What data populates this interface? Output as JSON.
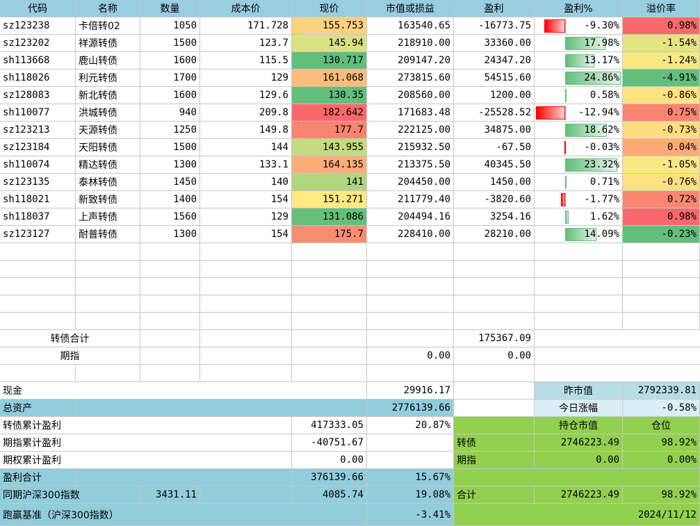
{
  "headers": [
    "代码",
    "名称",
    "数量",
    "成本价",
    "现价",
    "市值或损益",
    "盈利",
    "盈利%",
    "溢价率"
  ],
  "rows": [
    {
      "code": "sz123238",
      "name": "卡倍转02",
      "qty": "1050",
      "cost": "171.728",
      "price": "155.753",
      "mv": "163540.65",
      "pl": "-16773.75",
      "pct": "-9.30%",
      "pct_v": -9.3,
      "prem": "0.98%",
      "price_color": "#fcd27f",
      "prem_color": "#f8696b"
    },
    {
      "code": "sz123202",
      "name": "祥源转债",
      "qty": "1500",
      "cost": "123.7",
      "price": "145.94",
      "mv": "218910.00",
      "pl": "33360.00",
      "pct": "17.98%",
      "pct_v": 17.98,
      "prem": "-1.54%",
      "price_color": "#d8e283",
      "prem_color": "#e5e483"
    },
    {
      "code": "sh113668",
      "name": "鹿山转债",
      "qty": "1600",
      "cost": "115.5",
      "price": "130.717",
      "mv": "209147.20",
      "pl": "24347.20",
      "pct": "13.17%",
      "pct_v": 13.17,
      "prem": "-1.24%",
      "price_color": "#63be7b",
      "prem_color": "#f5e984"
    },
    {
      "code": "sh118026",
      "name": "利元转债",
      "qty": "1700",
      "cost": "129",
      "price": "161.068",
      "mv": "273815.60",
      "pl": "54515.60",
      "pct": "24.86%",
      "pct_v": 24.86,
      "prem": "-4.91%",
      "price_color": "#fdbc7b",
      "prem_color": "#63be7b"
    },
    {
      "code": "sz128083",
      "name": "新北转债",
      "qty": "1600",
      "cost": "129.6",
      "price": "130.35",
      "mv": "208560.00",
      "pl": "1200.00",
      "pct": "0.58%",
      "pct_v": 0.58,
      "prem": "-0.86%",
      "price_color": "#63be7b",
      "prem_color": "#fee382"
    },
    {
      "code": "sh110077",
      "name": "洪城转债",
      "qty": "940",
      "cost": "209.8",
      "price": "182.642",
      "mv": "171683.48",
      "pl": "-25528.52",
      "pct": "-12.94%",
      "pct_v": -12.94,
      "prem": "0.75%",
      "price_color": "#f8696b",
      "prem_color": "#f98470"
    },
    {
      "code": "sz123213",
      "name": "天源转债",
      "qty": "1250",
      "cost": "149.8",
      "price": "177.7",
      "mv": "222125.00",
      "pl": "34875.00",
      "pct": "18.62%",
      "pct_v": 18.62,
      "prem": "-0.73%",
      "price_color": "#f98470",
      "prem_color": "#fedd81"
    },
    {
      "code": "sz123184",
      "name": "天阳转债",
      "qty": "1500",
      "cost": "144",
      "price": "143.955",
      "mv": "215932.50",
      "pl": "-67.50",
      "pct": "-0.03%",
      "pct_v": -0.03,
      "prem": "0.04%",
      "price_color": "#c5db81",
      "prem_color": "#fbaa77"
    },
    {
      "code": "sh110074",
      "name": "精达转债",
      "qty": "1300",
      "cost": "133.1",
      "price": "164.135",
      "mv": "213375.50",
      "pl": "40345.50",
      "pct": "23.32%",
      "pct_v": 23.32,
      "prem": "-1.05%",
      "price_color": "#fcad78",
      "prem_color": "#fae884"
    },
    {
      "code": "sz123135",
      "name": "泰林转债",
      "qty": "1450",
      "cost": "140",
      "price": "141",
      "mv": "204450.00",
      "pl": "1450.00",
      "pct": "0.71%",
      "pct_v": 0.71,
      "prem": "-0.76%",
      "price_color": "#b2d580",
      "prem_color": "#fee082"
    },
    {
      "code": "sh118021",
      "name": "新致转债",
      "qty": "1400",
      "cost": "154",
      "price": "151.271",
      "mv": "211779.40",
      "pl": "-3820.60",
      "pct": "-1.77%",
      "pct_v": -1.77,
      "prem": "0.72%",
      "price_color": "#fee983",
      "prem_color": "#f98771"
    },
    {
      "code": "sh118037",
      "name": "上声转债",
      "qty": "1560",
      "cost": "129",
      "price": "131.086",
      "mv": "204494.16",
      "pl": "3254.16",
      "pct": "1.62%",
      "pct_v": 1.62,
      "prem": "0.98%",
      "price_color": "#65bf7b",
      "prem_color": "#f8696b"
    },
    {
      "code": "sz123127",
      "name": "耐普转债",
      "qty": "1300",
      "cost": "154",
      "price": "175.7",
      "mv": "228410.00",
      "pl": "28210.00",
      "pct": "14.09%",
      "pct_v": 14.09,
      "prem": "-0.23%",
      "price_color": "#f98d72",
      "prem_color": "#63be7b"
    }
  ],
  "summary": {
    "cb_total_label": "转债合计",
    "cb_total_value": "175367.09",
    "futures_label": "期指",
    "futures_mv": "0.00",
    "futures_pl": "0.00",
    "cash_label": "现金",
    "cash_value": "29916.17",
    "total_assets_label": "总资产",
    "total_assets_value": "2776139.66",
    "yesterday_mv_label": "昨市值",
    "yesterday_mv_value": "2792339.81",
    "today_change_label": "今日涨幅",
    "today_change_value": "-0.58%",
    "cb_cum_label": "转债累计盈利",
    "cb_cum_value": "417333.05",
    "cb_cum_pct": "20.87%",
    "fut_cum_label": "期指累计盈利",
    "fut_cum_value": "-40751.67",
    "opt_cum_label": "期权累计盈利",
    "opt_cum_value": "0.00",
    "pl_total_label": "盈利合计",
    "pl_total_value": "376139.66",
    "pl_total_pct": "15.67%",
    "hs300_label": "同期沪深300指数",
    "hs300_start": "3431.11",
    "hs300_now": "4085.74",
    "hs300_pct": "19.08%",
    "bench_label": "跑赢基准（沪深300指数）",
    "bench_value": "-3.41%",
    "hold_mv_label": "持仓市值",
    "position_label": "仓位",
    "cb_label": "转债",
    "cb_hold_mv": "2746223.49",
    "cb_position": "98.92%",
    "fut_label": "期指",
    "fut_hold_mv": "0.00",
    "fut_position": "0.00%",
    "sum_label": "合计",
    "sum_hold_mv": "2746223.49",
    "sum_position": "98.92%",
    "date": "2024/11/12"
  },
  "colors": {
    "header_blue": "#99cde0",
    "summary_blue": "#92cddc",
    "light_blue": "#b7dee8",
    "green_panel": "#92d050",
    "gridline": "#c7c7c7",
    "bar_positive": "#63be7b",
    "bar_negative": "#ff0000"
  }
}
